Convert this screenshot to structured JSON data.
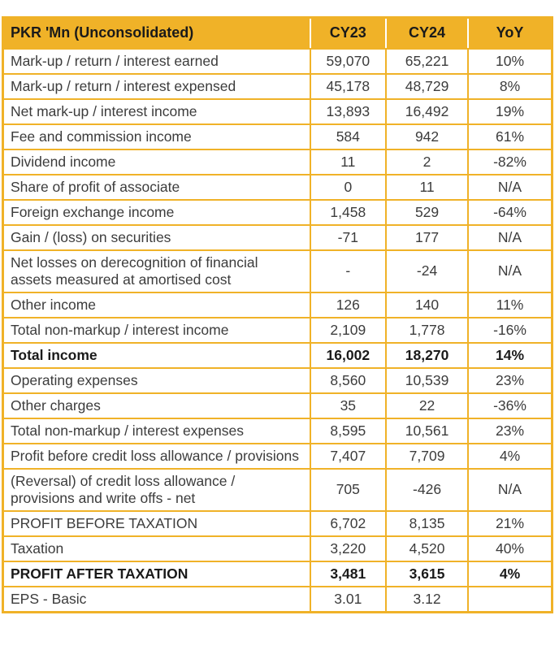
{
  "chart_data": {
    "type": "table",
    "title": "PKR 'Mn (Unconsolidated)",
    "columns": [
      "PKR 'Mn (Unconsolidated)",
      "CY23",
      "CY24",
      "YoY"
    ],
    "rows": [
      {
        "label": "Mark-up / return / interest earned",
        "cy23": "59,070",
        "cy24": "65,221",
        "yoy": "10%",
        "emphasis": false
      },
      {
        "label": "Mark-up / return / interest expensed",
        "cy23": "45,178",
        "cy24": "48,729",
        "yoy": "8%",
        "emphasis": false
      },
      {
        "label": "Net mark-up / interest income",
        "cy23": "13,893",
        "cy24": "16,492",
        "yoy": "19%",
        "emphasis": false
      },
      {
        "label": "Fee and commission income",
        "cy23": "584",
        "cy24": "942",
        "yoy": "61%",
        "emphasis": false
      },
      {
        "label": "Dividend income",
        "cy23": "11",
        "cy24": "2",
        "yoy": "-82%",
        "emphasis": false
      },
      {
        "label": "Share of profit of associate",
        "cy23": "0",
        "cy24": "11",
        "yoy": "N/A",
        "emphasis": false
      },
      {
        "label": "Foreign exchange income",
        "cy23": "1,458",
        "cy24": "529",
        "yoy": "-64%",
        "emphasis": false
      },
      {
        "label": "Gain / (loss) on securities",
        "cy23": "-71",
        "cy24": "177",
        "yoy": "N/A",
        "emphasis": false
      },
      {
        "label": "Net losses on derecognition of financial assets measured at amortised cost",
        "cy23": "-",
        "cy24": "-24",
        "yoy": "N/A",
        "emphasis": false
      },
      {
        "label": "Other income",
        "cy23": "126",
        "cy24": "140",
        "yoy": "11%",
        "emphasis": false
      },
      {
        "label": "Total non-markup / interest income",
        "cy23": "2,109",
        "cy24": "1,778",
        "yoy": "-16%",
        "emphasis": false
      },
      {
        "label": "Total income",
        "cy23": "16,002",
        "cy24": "18,270",
        "yoy": "14%",
        "emphasis": true
      },
      {
        "label": "Operating expenses",
        "cy23": "8,560",
        "cy24": "10,539",
        "yoy": "23%",
        "emphasis": false
      },
      {
        "label": "Other charges",
        "cy23": "35",
        "cy24": "22",
        "yoy": "-36%",
        "emphasis": false
      },
      {
        "label": "Total non-markup / interest expenses",
        "cy23": "8,595",
        "cy24": "10,561",
        "yoy": "23%",
        "emphasis": false
      },
      {
        "label": "Profit before credit loss allowance / provisions",
        "cy23": "7,407",
        "cy24": "7,709",
        "yoy": "4%",
        "emphasis": false
      },
      {
        "label": "(Reversal) of credit loss allowance / provisions and write offs - net",
        "cy23": "705",
        "cy24": "-426",
        "yoy": "N/A",
        "emphasis": false
      },
      {
        "label": "PROFIT BEFORE TAXATION",
        "cy23": "6,702",
        "cy24": "8,135",
        "yoy": "21%",
        "emphasis": false
      },
      {
        "label": "Taxation",
        "cy23": "3,220",
        "cy24": "4,520",
        "yoy": "40%",
        "emphasis": false
      },
      {
        "label": "PROFIT AFTER TAXATION",
        "cy23": "3,481",
        "cy24": "3,615",
        "yoy": "4%",
        "emphasis": true
      },
      {
        "label": "EPS - Basic",
        "cy23": "3.01",
        "cy24": "3.12",
        "yoy": "",
        "emphasis": false
      }
    ],
    "colors": {
      "accent": "#F0B228",
      "body_text": "#3C3C3C",
      "header_text": "#1A1A1A",
      "cell_background": "#FFFFFF"
    },
    "layout_hints": {
      "header_separator_color": "#FFFFFF",
      "grid": "on",
      "value_alignment": "center",
      "label_alignment": "left"
    }
  }
}
